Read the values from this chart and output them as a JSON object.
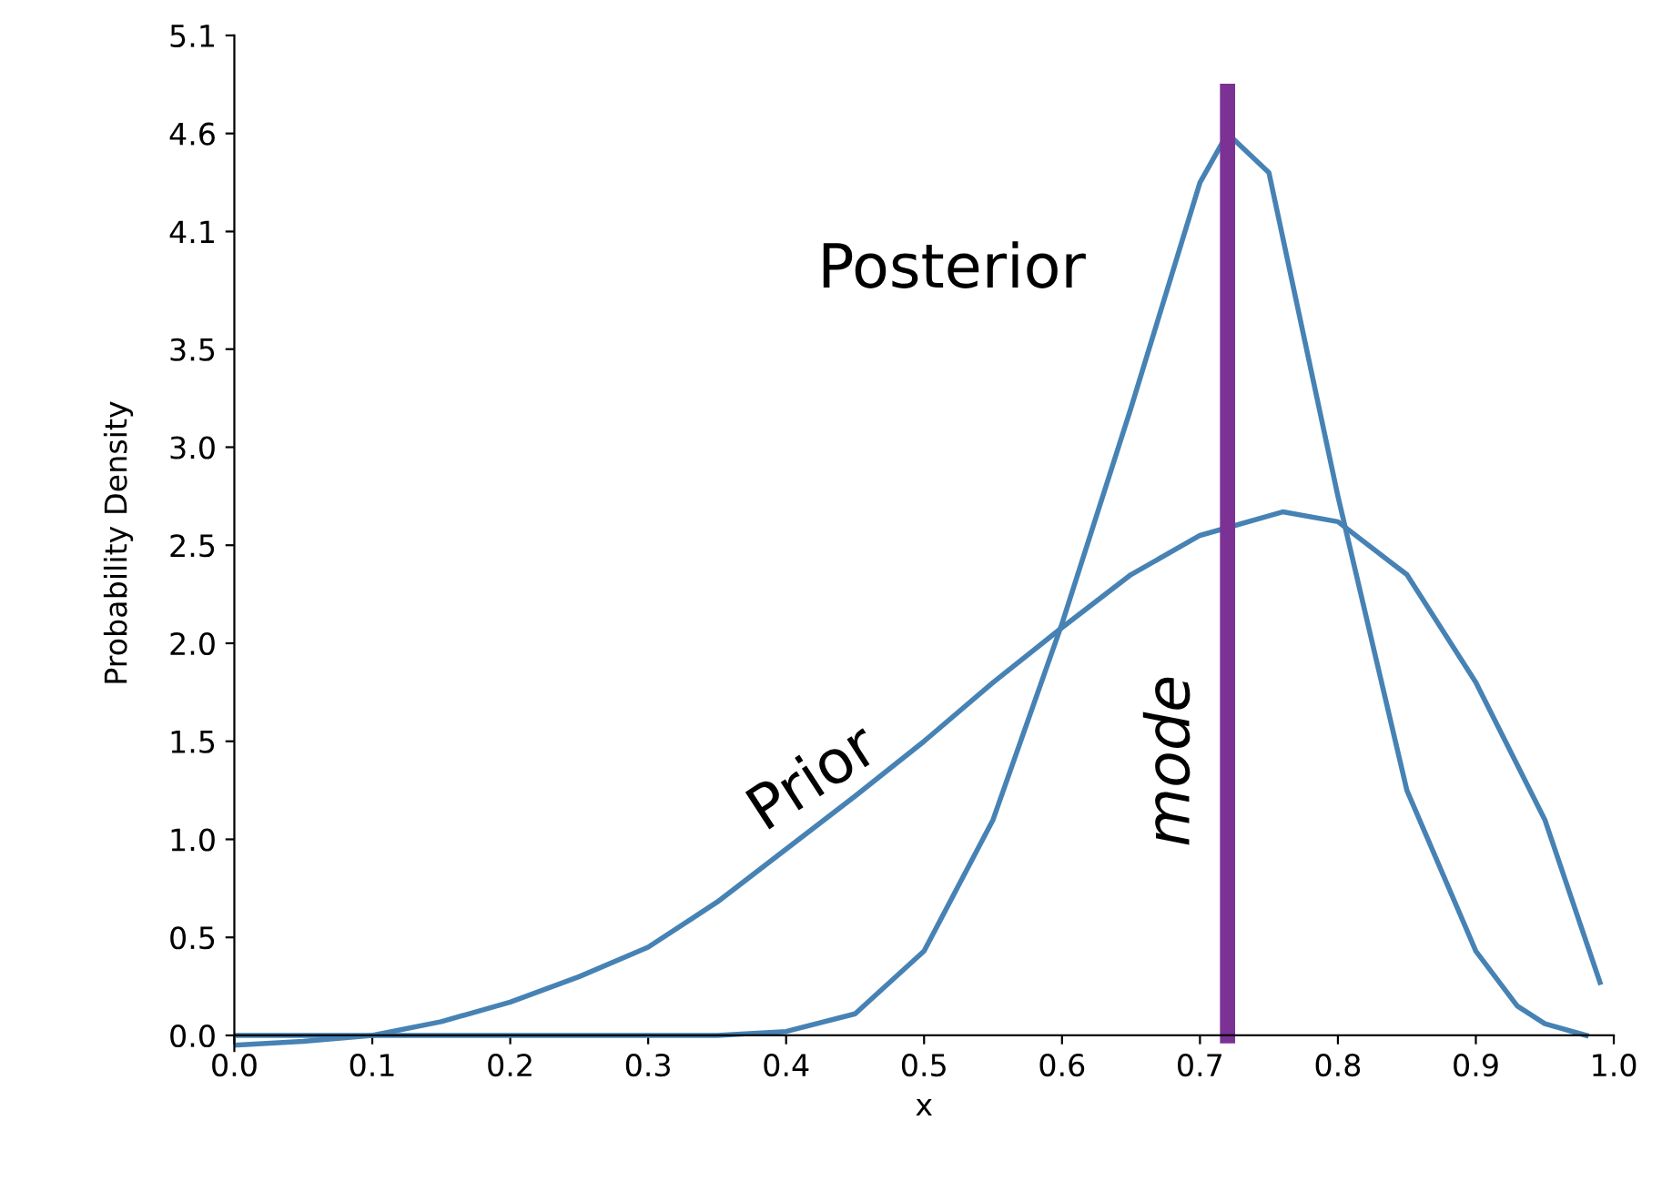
{
  "chart_data": {
    "type": "line",
    "xlabel": "x",
    "ylabel": "Probability Density",
    "xlim": [
      0,
      1
    ],
    "xticks": [
      {
        "value": 0,
        "label": "0.0"
      },
      0.1,
      0.2,
      0.3,
      0.4,
      0.5,
      0.6,
      0.7,
      0.8,
      0.9,
      {
        "value": 1,
        "label": "1.0"
      }
    ],
    "ylim": [
      -0.08,
      5.1
    ],
    "yticks": [
      {
        "value": 0,
        "label": "0.0"
      },
      0.5,
      {
        "value": 1,
        "label": "1.0"
      },
      1.5,
      {
        "value": 2,
        "label": "2.0"
      },
      2.5,
      {
        "value": 3,
        "label": "3.0"
      },
      3.5,
      4.1,
      4.6,
      5.1
    ],
    "series": [
      {
        "name": "Prior",
        "color": "#4682b4",
        "x": [
          0,
          0.05,
          0.1,
          0.15,
          0.2,
          0.25,
          0.3,
          0.35,
          0.4,
          0.45,
          0.5,
          0.55,
          0.6,
          0.65,
          0.7,
          0.76,
          0.8,
          0.85,
          0.9,
          0.95,
          0.99
        ],
        "values": [
          -0.05,
          -0.03,
          0.0,
          0.07,
          0.17,
          0.3,
          0.45,
          0.68,
          0.95,
          1.22,
          1.5,
          1.8,
          2.08,
          2.35,
          2.55,
          2.67,
          2.62,
          2.35,
          1.8,
          1.1,
          0.27
        ]
      },
      {
        "name": "Posterior",
        "color": "#4682b4",
        "x": [
          0,
          0.1,
          0.2,
          0.3,
          0.35,
          0.4,
          0.45,
          0.5,
          0.55,
          0.6,
          0.65,
          0.7,
          0.72,
          0.75,
          0.8,
          0.85,
          0.9,
          0.93,
          0.95,
          0.98
        ],
        "values": [
          0,
          0,
          0,
          0,
          0.0,
          0.02,
          0.11,
          0.43,
          1.1,
          2.1,
          3.2,
          4.35,
          4.6,
          4.4,
          2.75,
          1.25,
          0.43,
          0.15,
          0.06,
          0.0
        ]
      }
    ],
    "ref_lines": [
      {
        "axis": "x",
        "value": 0.72,
        "label": "mode",
        "color": "#7b3294"
      }
    ],
    "grid": false,
    "legend": false
  }
}
